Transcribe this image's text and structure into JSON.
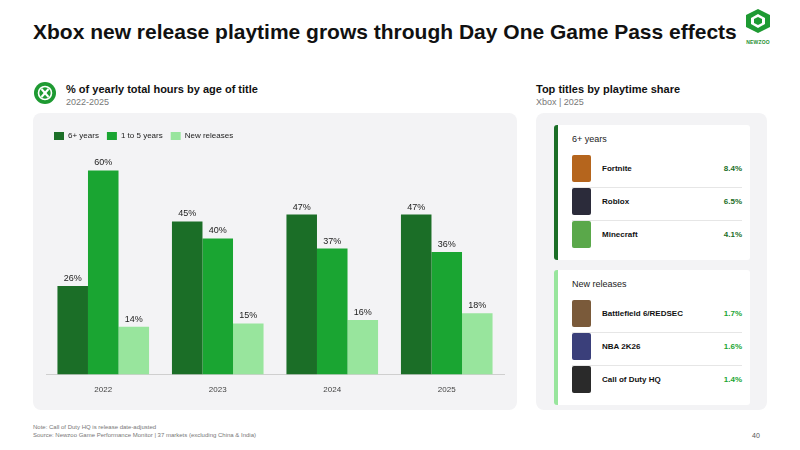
{
  "title": "Xbox new release playtime grows through Day One Game Pass effects",
  "logo": "NEWZOO",
  "chart_data": {
    "type": "bar",
    "title": "% of yearly total hours by age of title",
    "subtitle": "2022-2025",
    "categories": [
      "2022",
      "2023",
      "2024",
      "2025"
    ],
    "series": [
      {
        "name": "6+ years",
        "color": "#1b6e27",
        "values": [
          26,
          45,
          47,
          47
        ],
        "value_labels": [
          "26%",
          "45%",
          "47%",
          "47%"
        ]
      },
      {
        "name": "1 to 5 years",
        "color": "#1aa532",
        "values": [
          60,
          40,
          37,
          36
        ],
        "value_labels": [
          "60%",
          "40%",
          "37%",
          "36%"
        ]
      },
      {
        "name": "New releases",
        "color": "#98e59d",
        "values": [
          14,
          15,
          16,
          18
        ],
        "value_labels": [
          "14%",
          "15%",
          "16%",
          "18%"
        ]
      }
    ],
    "ylim": [
      0,
      66
    ],
    "grid": false,
    "legend": "top-left",
    "data_labels": true,
    "tick_labels": "x"
  },
  "side_panel": {
    "title": "Top titles by playtime share",
    "subtitle": "Xbox | 2025",
    "groups": [
      {
        "name": "6+ years",
        "items": [
          {
            "name": "Fortnite",
            "share": "8.4%"
          },
          {
            "name": "Roblox",
            "share": "6.5%"
          },
          {
            "name": "Minecraft",
            "share": "4.1%"
          }
        ]
      },
      {
        "name": "New releases",
        "items": [
          {
            "name": "Battlefield 6/REDSEC",
            "share": "1.7%"
          },
          {
            "name": "NBA 2K26",
            "share": "1.6%"
          },
          {
            "name": "Call of Duty HQ",
            "share": "1.4%"
          }
        ]
      }
    ]
  },
  "footer": {
    "note": "Note: Call of Duty HQ is release date-adjusted",
    "source": "Source: Newzoo Game Performance Monitor | 37 markets (excluding China & India)",
    "page_number": "40"
  }
}
